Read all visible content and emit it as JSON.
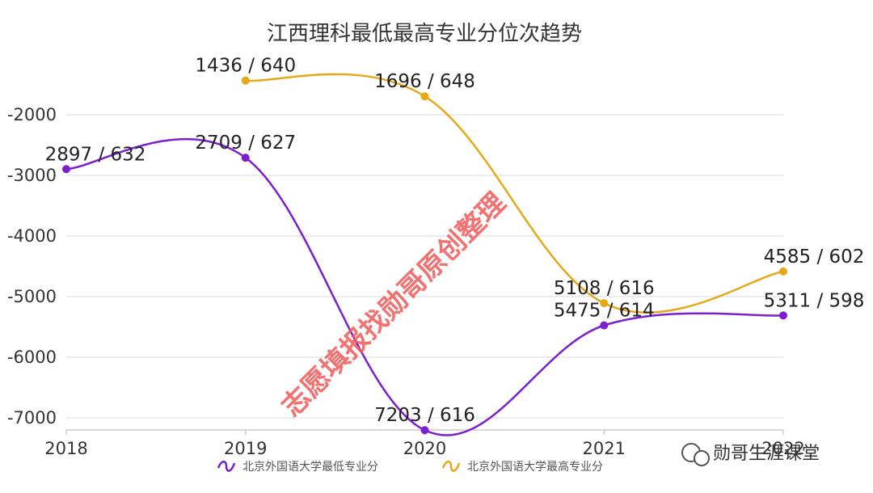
{
  "chart_data": {
    "type": "line",
    "title": "江西理科最低最高专业分位次趋势",
    "x": [
      "2018",
      "2019",
      "2020",
      "2021",
      "2022"
    ],
    "yticks": [
      -2000,
      -3000,
      -4000,
      -5000,
      -6000,
      -7000
    ],
    "ylim": [
      -7200,
      -1200
    ],
    "series": [
      {
        "name": "北京外国语大学最低专业分",
        "color": "#7b1fd1",
        "values": [
          -2897,
          -2709,
          -7203,
          -5475,
          -5311
        ],
        "labels": [
          "2897 / 632",
          "2709 / 627",
          "7203 / 616",
          "5475 / 614",
          "5311 / 598"
        ]
      },
      {
        "name": "北京外国语大学最高专业分",
        "color": "#e6a817",
        "values": [
          null,
          -1436,
          -1696,
          -5108,
          -4585
        ],
        "labels": [
          null,
          "1436 / 640",
          "1696 / 648",
          "5108 / 616",
          "4585 / 602"
        ]
      }
    ]
  },
  "watermark": "志愿填报找勋哥原创整理",
  "brand": "勋哥生涯课堂"
}
